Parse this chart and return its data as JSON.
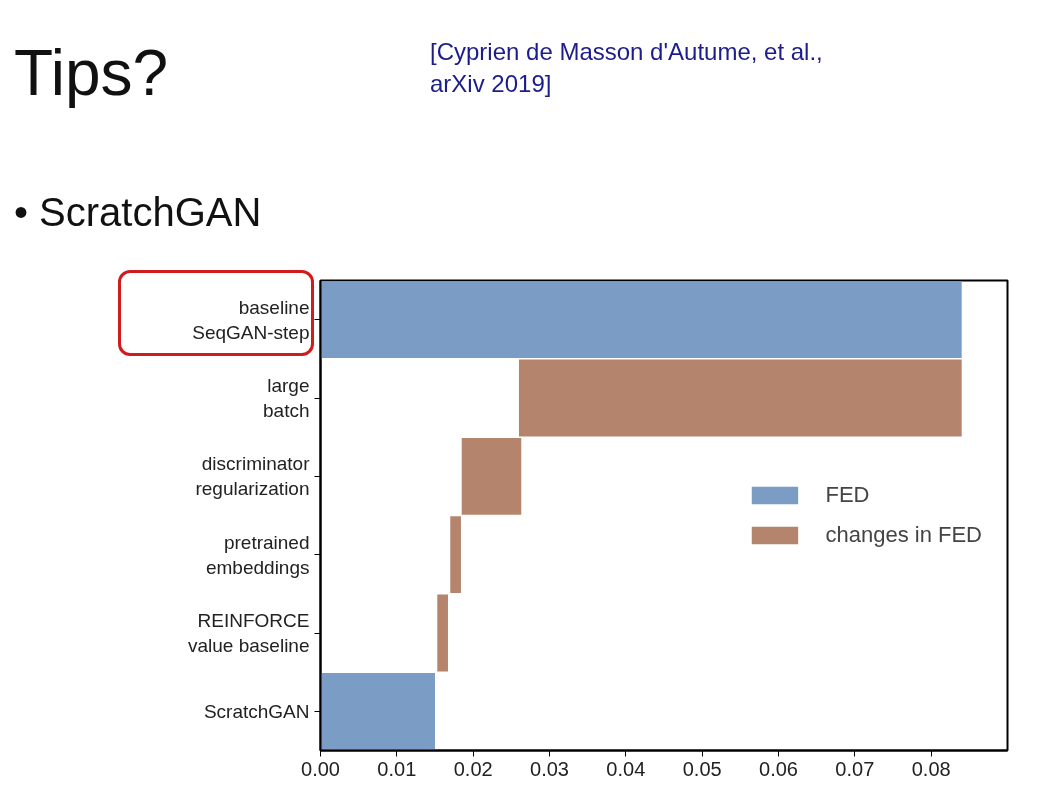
{
  "chart_data": {
    "type": "bar",
    "orientation": "horizontal",
    "title": "Tips?",
    "subtitle": "• ScratchGAN",
    "annotations": [
      "[Cyprien de Masson d'Autume, et al., arXiv 2019]"
    ],
    "categories": [
      "baseline\nSeqGAN-step",
      "large\nbatch",
      "discriminator\nregularization",
      "pretrained\nembeddings",
      "REINFORCE\nvalue baseline",
      "ScratchGAN"
    ],
    "series": [
      {
        "name": "FED",
        "color": "#7b9cc4",
        "values": [
          0.084,
          null,
          null,
          null,
          null,
          0.015
        ],
        "base": [
          0,
          null,
          null,
          null,
          null,
          0
        ]
      },
      {
        "name": "changes in FED",
        "color": "#b5846c",
        "values": [
          null,
          0.058,
          0.0078,
          0.0014,
          0.0014,
          null
        ],
        "base": [
          null,
          0.026,
          0.0185,
          0.017,
          0.0153,
          null
        ]
      }
    ],
    "xlim": [
      0,
      0.09
    ],
    "xticks": [
      {
        "value": 0,
        "label": "0.00"
      },
      {
        "value": 0.01,
        "label": "0.01"
      },
      {
        "value": 0.02,
        "label": "0.02"
      },
      {
        "value": 0.03,
        "label": "0.03"
      },
      {
        "value": 0.04,
        "label": "0.04"
      },
      {
        "value": 0.05,
        "label": "0.05"
      },
      {
        "value": 0.06,
        "label": "0.06"
      },
      {
        "value": 0.07,
        "label": "0.07"
      },
      {
        "value": 0.08,
        "label": "0.08"
      }
    ],
    "legend": "right",
    "grid": false
  }
}
